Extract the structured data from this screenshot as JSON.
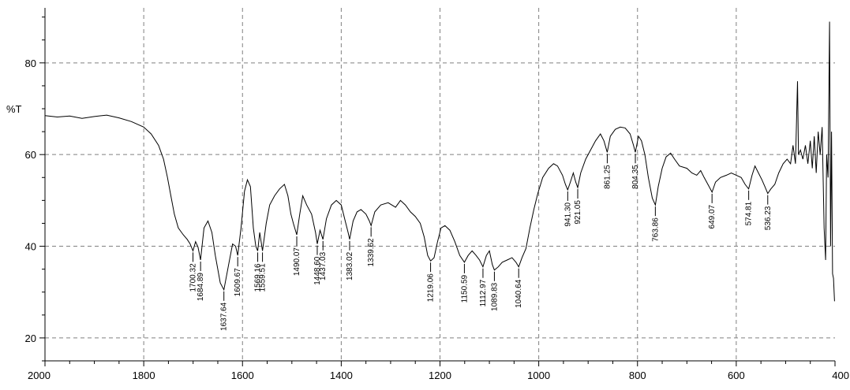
{
  "chart_data": {
    "type": "line",
    "title": "",
    "xlabel": "",
    "ylabel": "%T",
    "xlim": [
      2000,
      400
    ],
    "ylim": [
      15,
      92
    ],
    "x_ticks": [
      2000,
      1800,
      1600,
      1400,
      1200,
      1000,
      800,
      600,
      400
    ],
    "y_ticks": [
      20,
      40,
      60,
      80
    ],
    "grid": true,
    "line_color": "#000000",
    "grid_color": "#808080",
    "series": [
      {
        "points": [
          [
            2000,
            68.5
          ],
          [
            1975,
            68.2
          ],
          [
            1950,
            68.4
          ],
          [
            1925,
            67.9
          ],
          [
            1900,
            68.3
          ],
          [
            1875,
            68.6
          ],
          [
            1850,
            68.0
          ],
          [
            1825,
            67.2
          ],
          [
            1800,
            66.0
          ],
          [
            1785,
            64.5
          ],
          [
            1770,
            62.0
          ],
          [
            1760,
            59.0
          ],
          [
            1752,
            55.0
          ],
          [
            1745,
            51.0
          ],
          [
            1738,
            47.0
          ],
          [
            1730,
            44.0
          ],
          [
            1720,
            42.5
          ],
          [
            1712,
            41.5
          ],
          [
            1706,
            40.5
          ],
          [
            1700.32,
            39.0
          ],
          [
            1695,
            41.0
          ],
          [
            1690,
            39.8
          ],
          [
            1684.89,
            37.0
          ],
          [
            1678,
            44.0
          ],
          [
            1670,
            45.5
          ],
          [
            1662,
            43.0
          ],
          [
            1655,
            38.0
          ],
          [
            1645,
            32.0
          ],
          [
            1637.64,
            30.5
          ],
          [
            1628,
            36.0
          ],
          [
            1620,
            40.5
          ],
          [
            1614,
            40.0
          ],
          [
            1609.67,
            38.0
          ],
          [
            1603,
            44.0
          ],
          [
            1596,
            52.0
          ],
          [
            1590,
            54.5
          ],
          [
            1584,
            53.0
          ],
          [
            1578,
            44.0
          ],
          [
            1573,
            40.0
          ],
          [
            1569.16,
            39.0
          ],
          [
            1565,
            43.0
          ],
          [
            1559.51,
            39.0
          ],
          [
            1552,
            45.0
          ],
          [
            1545,
            49.0
          ],
          [
            1535,
            51.0
          ],
          [
            1525,
            52.5
          ],
          [
            1515,
            53.5
          ],
          [
            1508,
            51.0
          ],
          [
            1502,
            47.0
          ],
          [
            1497,
            45.0
          ],
          [
            1490.07,
            42.5
          ],
          [
            1484,
            47.0
          ],
          [
            1478,
            51.0
          ],
          [
            1470,
            49.0
          ],
          [
            1460,
            47.0
          ],
          [
            1452,
            43.0
          ],
          [
            1448.6,
            40.5
          ],
          [
            1443,
            43.5
          ],
          [
            1437.03,
            41.5
          ],
          [
            1430,
            46.0
          ],
          [
            1420,
            49.0
          ],
          [
            1410,
            50.0
          ],
          [
            1400,
            49.0
          ],
          [
            1392,
            45.5
          ],
          [
            1386,
            43.0
          ],
          [
            1383.02,
            41.5
          ],
          [
            1376,
            45.5
          ],
          [
            1368,
            47.5
          ],
          [
            1360,
            48.0
          ],
          [
            1350,
            47.0
          ],
          [
            1343,
            45.5
          ],
          [
            1339.62,
            44.5
          ],
          [
            1332,
            47.5
          ],
          [
            1320,
            49.0
          ],
          [
            1305,
            49.5
          ],
          [
            1290,
            48.5
          ],
          [
            1280,
            50.0
          ],
          [
            1270,
            49.0
          ],
          [
            1260,
            47.5
          ],
          [
            1250,
            46.5
          ],
          [
            1240,
            45.0
          ],
          [
            1232,
            42.0
          ],
          [
            1225,
            38.0
          ],
          [
            1219.06,
            36.8
          ],
          [
            1212,
            37.5
          ],
          [
            1205,
            41.0
          ],
          [
            1198,
            44.0
          ],
          [
            1190,
            44.5
          ],
          [
            1180,
            43.5
          ],
          [
            1170,
            41.0
          ],
          [
            1160,
            38.0
          ],
          [
            1150.59,
            36.5
          ],
          [
            1143,
            38.0
          ],
          [
            1135,
            39.0
          ],
          [
            1127,
            38.0
          ],
          [
            1120,
            37.0
          ],
          [
            1112.97,
            35.5
          ],
          [
            1106,
            38.0
          ],
          [
            1100,
            39.0
          ],
          [
            1094,
            36.0
          ],
          [
            1089.83,
            34.8
          ],
          [
            1082,
            35.5
          ],
          [
            1074,
            36.5
          ],
          [
            1064,
            37.0
          ],
          [
            1054,
            37.5
          ],
          [
            1046,
            36.5
          ],
          [
            1040.64,
            35.5
          ],
          [
            1034,
            37.5
          ],
          [
            1026,
            39.5
          ],
          [
            1018,
            44.0
          ],
          [
            1010,
            48.0
          ],
          [
            1002,
            51.5
          ],
          [
            992,
            55.0
          ],
          [
            980,
            57.0
          ],
          [
            970,
            58.0
          ],
          [
            962,
            57.5
          ],
          [
            952,
            55.5
          ],
          [
            946,
            53.5
          ],
          [
            941.3,
            52.3
          ],
          [
            936,
            54.0
          ],
          [
            930,
            56.0
          ],
          [
            925,
            54.0
          ],
          [
            921.05,
            52.8
          ],
          [
            915,
            56.0
          ],
          [
            905,
            59.0
          ],
          [
            895,
            61.0
          ],
          [
            885,
            63.0
          ],
          [
            875,
            64.5
          ],
          [
            868,
            63.0
          ],
          [
            861.25,
            60.5
          ],
          [
            855,
            64.0
          ],
          [
            845,
            65.5
          ],
          [
            835,
            66.0
          ],
          [
            825,
            65.8
          ],
          [
            815,
            64.5
          ],
          [
            808,
            62.0
          ],
          [
            804.35,
            60.5
          ],
          [
            798,
            64.0
          ],
          [
            792,
            63.0
          ],
          [
            785,
            60.0
          ],
          [
            778,
            55.0
          ],
          [
            770,
            50.5
          ],
          [
            763.86,
            49.0
          ],
          [
            758,
            53.0
          ],
          [
            750,
            57.0
          ],
          [
            742,
            59.5
          ],
          [
            733,
            60.3
          ],
          [
            725,
            59.0
          ],
          [
            715,
            57.5
          ],
          [
            700,
            57.0
          ],
          [
            690,
            56.0
          ],
          [
            680,
            55.5
          ],
          [
            672,
            56.5
          ],
          [
            665,
            55.0
          ],
          [
            655,
            53.0
          ],
          [
            649.07,
            51.8
          ],
          [
            642,
            54.0
          ],
          [
            632,
            55.0
          ],
          [
            620,
            55.5
          ],
          [
            610,
            56.0
          ],
          [
            600,
            55.5
          ],
          [
            590,
            55.0
          ],
          [
            582,
            53.5
          ],
          [
            574.81,
            52.5
          ],
          [
            568,
            55.5
          ],
          [
            562,
            57.5
          ],
          [
            555,
            56.0
          ],
          [
            548,
            54.5
          ],
          [
            542,
            53.0
          ],
          [
            536.23,
            51.5
          ],
          [
            530,
            52.5
          ],
          [
            522,
            53.5
          ],
          [
            514,
            56.0
          ],
          [
            505,
            58.0
          ],
          [
            497,
            59.0
          ],
          [
            490,
            58.0
          ],
          [
            485,
            62.0
          ],
          [
            480,
            58.0
          ],
          [
            476,
            76.0
          ],
          [
            474,
            60.0
          ],
          [
            470,
            61.0
          ],
          [
            465,
            59.0
          ],
          [
            460,
            62.0
          ],
          [
            455,
            58.0
          ],
          [
            450,
            63.0
          ],
          [
            446,
            57.0
          ],
          [
            442,
            64.0
          ],
          [
            438,
            56.0
          ],
          [
            434,
            65.0
          ],
          [
            430,
            60.0
          ],
          [
            426,
            66.0
          ],
          [
            422,
            44.0
          ],
          [
            419,
            37.0
          ],
          [
            417,
            60.0
          ],
          [
            414,
            55.0
          ],
          [
            411,
            89.0
          ],
          [
            409,
            40.0
          ],
          [
            407,
            65.0
          ],
          [
            405,
            34.0
          ],
          [
            403,
            33.0
          ],
          [
            401,
            28.0
          ]
        ]
      }
    ],
    "peaks": [
      {
        "x": 1700.32,
        "label": "1700.32",
        "marker_y": 39.0
      },
      {
        "x": 1684.89,
        "label": "1684.89",
        "marker_y": 37.0
      },
      {
        "x": 1637.64,
        "label": "1637.64",
        "marker_y": 30.5
      },
      {
        "x": 1609.67,
        "label": "1609.67",
        "marker_y": 38.0
      },
      {
        "x": 1569.16,
        "label": "1569.16",
        "marker_y": 39.0
      },
      {
        "x": 1559.51,
        "label": "1559.51",
        "marker_y": 39.0
      },
      {
        "x": 1490.07,
        "label": "1490.07",
        "marker_y": 42.5
      },
      {
        "x": 1448.6,
        "label": "1448.60",
        "marker_y": 40.5
      },
      {
        "x": 1437.03,
        "label": "1437.03",
        "marker_y": 41.5
      },
      {
        "x": 1383.02,
        "label": "1383.02",
        "marker_y": 41.5
      },
      {
        "x": 1339.62,
        "label": "1339.62",
        "marker_y": 44.5
      },
      {
        "x": 1219.06,
        "label": "1219.06",
        "marker_y": 36.8
      },
      {
        "x": 1150.59,
        "label": "1150.59",
        "marker_y": 36.5
      },
      {
        "x": 1112.97,
        "label": "1112.97",
        "marker_y": 35.5
      },
      {
        "x": 1089.83,
        "label": "1089.83",
        "marker_y": 34.8
      },
      {
        "x": 1040.64,
        "label": "1040.64",
        "marker_y": 35.5
      },
      {
        "x": 941.3,
        "label": "941.30",
        "marker_y": 52.3
      },
      {
        "x": 921.05,
        "label": "921.05",
        "marker_y": 52.8
      },
      {
        "x": 861.25,
        "label": "861.25",
        "marker_y": 60.5
      },
      {
        "x": 804.35,
        "label": "804.35",
        "marker_y": 60.5
      },
      {
        "x": 763.86,
        "label": "763.86",
        "marker_y": 49.0
      },
      {
        "x": 649.07,
        "label": "649.07",
        "marker_y": 51.8
      },
      {
        "x": 574.81,
        "label": "574.81",
        "marker_y": 52.5
      },
      {
        "x": 536.23,
        "label": "536.23",
        "marker_y": 51.5
      }
    ]
  }
}
